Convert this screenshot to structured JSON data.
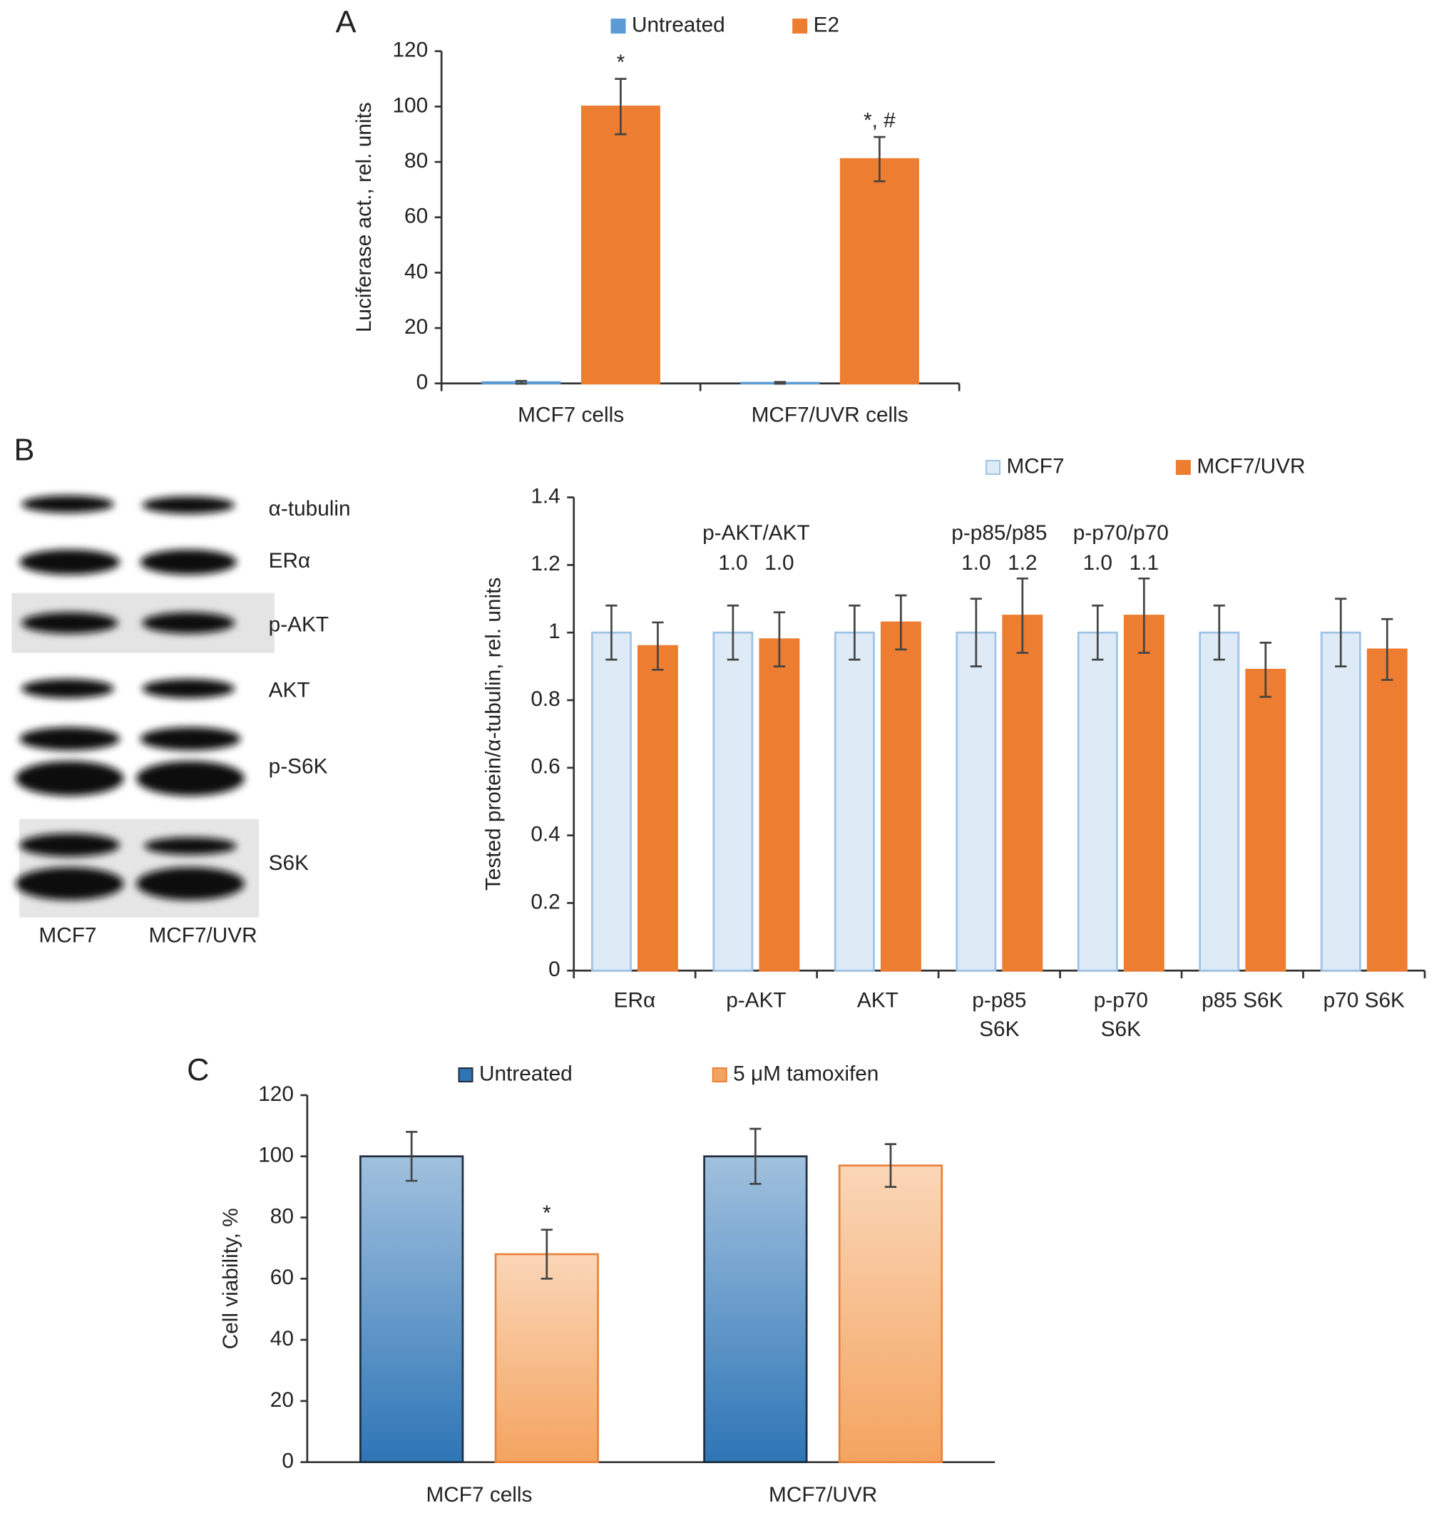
{
  "chart_data": [
    {
      "type": "bar",
      "panel": "A",
      "ylabel": "Luciferase act., rel. units",
      "categories": [
        "MCF7 cells",
        "MCF7/UVR cells"
      ],
      "series": [
        {
          "name": "Untreated",
          "color": "#5b9bd5",
          "edgecolor": "#5b9bd5",
          "values": [
            0.4,
            0.2
          ],
          "errors": [
            0.5,
            0.3
          ]
        },
        {
          "name": "E2",
          "color": "#ed7d31",
          "edgecolor": "#ed7d31",
          "values": [
            100,
            81
          ],
          "errors": [
            10,
            8
          ],
          "value_annotations": [
            "*",
            "*, #"
          ]
        }
      ],
      "ylim": [
        0,
        120
      ],
      "yticks": [
        0,
        20,
        40,
        60,
        80,
        100,
        120
      ]
    },
    {
      "type": "bar",
      "ylabel": "Tested protein/α-tubulin, rel. units",
      "categories": [
        [
          "ERα"
        ],
        [
          "p-AKT"
        ],
        [
          "AKT"
        ],
        [
          "p-p85",
          "S6K"
        ],
        [
          "p-p70",
          "S6K"
        ],
        [
          "p85 S6K"
        ],
        [
          "p70 S6K"
        ]
      ],
      "series": [
        {
          "name": "MCF7",
          "color": "#deebf7",
          "edgecolor": "#9dc3e6",
          "values": [
            1,
            1,
            1,
            1,
            1,
            1,
            1
          ],
          "errors": [
            0.08,
            0.08,
            0.08,
            0.1,
            0.08,
            0.08,
            0.1
          ]
        },
        {
          "name": "MCF7/UVR",
          "color": "#ed7d31",
          "edgecolor": "#ed7d31",
          "values": [
            0.96,
            0.98,
            1.03,
            1.05,
            1.05,
            0.89,
            0.95
          ],
          "errors": [
            0.07,
            0.08,
            0.08,
            0.11,
            0.11,
            0.08,
            0.09
          ]
        }
      ],
      "ratio_annotations": [
        null,
        {
          "title": "p-AKT/AKT",
          "values": [
            1,
            1
          ],
          "value_labels": [
            "1.0",
            "1.0"
          ]
        },
        null,
        {
          "title": "p-p85/p85",
          "values": [
            1,
            1.2
          ],
          "value_labels": [
            "1.0",
            "1.2"
          ]
        },
        {
          "title": "p-p70/p70",
          "values": [
            1,
            1.1
          ],
          "value_labels": [
            "1.0",
            "1.1"
          ]
        },
        null,
        null
      ],
      "ylim": [
        0,
        1.4
      ],
      "yticks": [
        0,
        0.2,
        0.4,
        0.6,
        0.8,
        1,
        1.2,
        1.4
      ]
    },
    {
      "type": "bar",
      "panel": "C",
      "ylabel": "Cell viability, %",
      "gradient": true,
      "categories": [
        "MCF7 cells",
        "MCF7/UVR"
      ],
      "series": [
        {
          "name": "Untreated",
          "color": "#2e75b6",
          "edgecolor": "#1f2d3d",
          "values": [
            100,
            100
          ],
          "errors": [
            8,
            9
          ]
        },
        {
          "name": "5 μM tamoxifen",
          "color": "#f4a460",
          "edgecolor": "#e8823a",
          "values": [
            68,
            97
          ],
          "errors": [
            8,
            7
          ],
          "value_annotations": [
            "*",
            null
          ]
        }
      ],
      "ylim": [
        0,
        120
      ],
      "yticks": [
        0,
        20,
        40,
        60,
        80,
        100,
        120
      ]
    }
  ],
  "blot": {
    "panel": "B",
    "bands": [
      "α-tubulin",
      "ERα",
      "p-AKT",
      "AKT",
      "p-S6K",
      "S6K"
    ],
    "lanes": [
      "MCF7",
      "MCF7/UVR"
    ]
  }
}
